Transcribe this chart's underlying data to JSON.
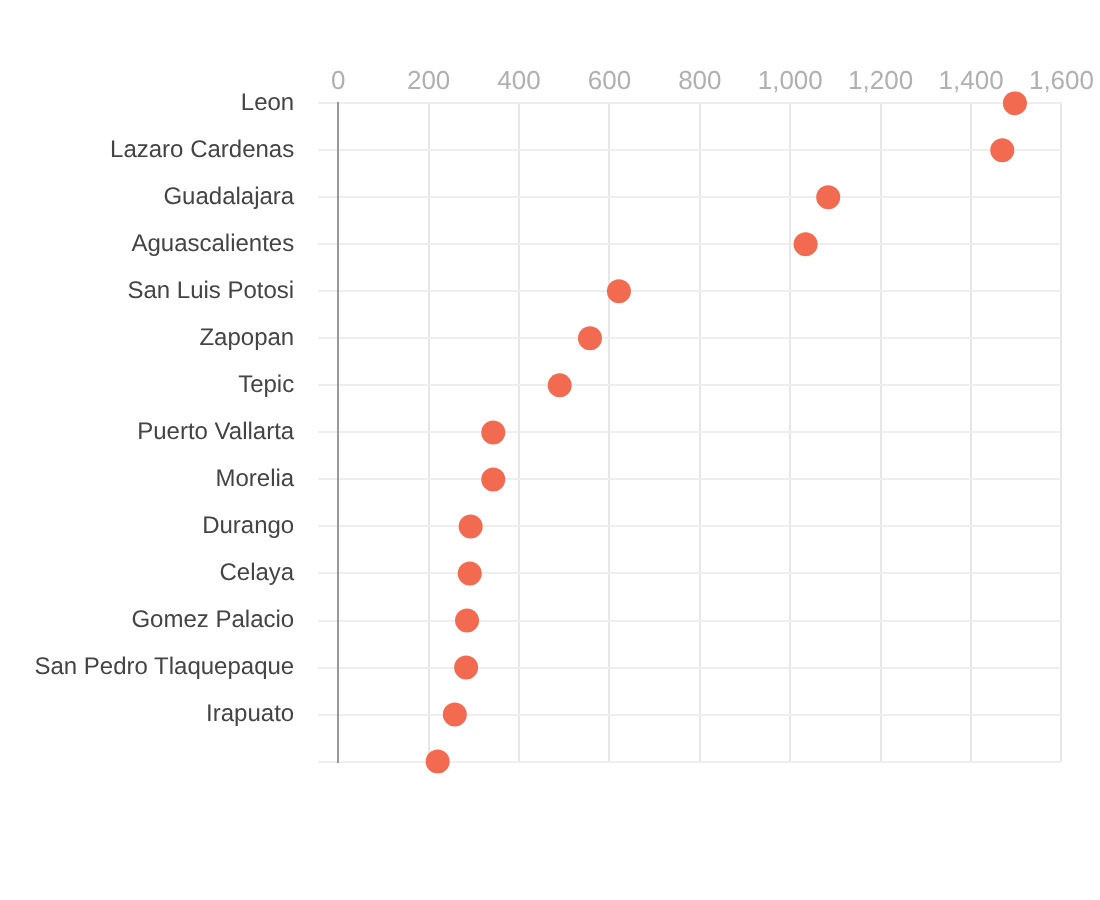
{
  "chart_data": {
    "type": "scatter",
    "orientation": "horizontal",
    "categories": [
      "Leon",
      "Lazaro Cardenas",
      "Guadalajara",
      "Aguascalientes",
      "San Luis Potosi",
      "Zapopan",
      "Tepic",
      "Puerto Vallarta",
      "Morelia",
      "Durango",
      "Celaya",
      "Gomez Palacio",
      "San Pedro Tlaquepaque",
      "Irapuato",
      null
    ],
    "values": [
      1497,
      1469,
      1084,
      1034,
      621,
      557,
      490,
      343,
      343,
      293,
      291,
      285,
      283,
      258,
      220
    ],
    "color": "#f26b50",
    "marker": "circle",
    "grid": true,
    "legend": false,
    "xlim": [
      0,
      1600
    ],
    "xticks": [
      0,
      200,
      400,
      600,
      800,
      {
        "value": 1000,
        "label": "1,000"
      },
      {
        "value": 1200,
        "label": "1,200"
      },
      {
        "value": 1400,
        "label": "1,400"
      },
      {
        "value": 1600,
        "label": "1,600"
      }
    ]
  }
}
